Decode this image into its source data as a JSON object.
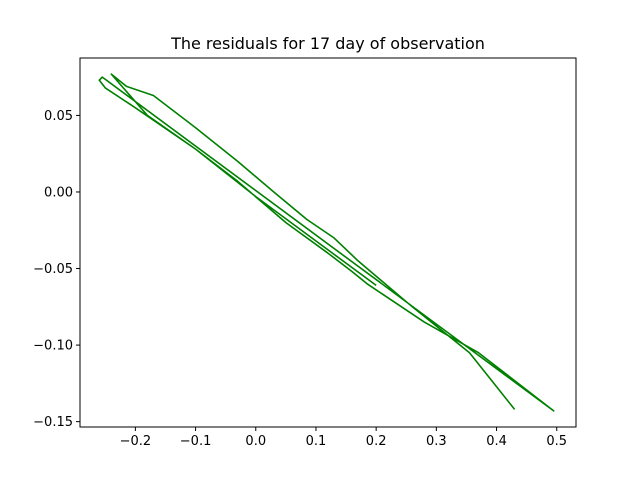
{
  "chart_data": {
    "type": "line",
    "title": "The residuals for 17 day of observation",
    "xlabel": "",
    "ylabel": "",
    "xlim": [
      -0.292,
      0.532
    ],
    "ylim": [
      -0.1535,
      0.0875
    ],
    "x_ticks": [
      -0.2,
      -0.1,
      0.0,
      0.1,
      0.2,
      0.3,
      0.4,
      0.5
    ],
    "x_tick_labels": [
      "−0.2",
      "−0.1",
      "0.0",
      "0.1",
      "0.2",
      "0.3",
      "0.4",
      "0.5"
    ],
    "y_ticks": [
      0.05,
      0.0,
      -0.05,
      -0.1,
      -0.15
    ],
    "y_tick_labels": [
      "0.05",
      "0.00",
      "−0.05",
      "−0.10",
      "−0.15"
    ],
    "grid": false,
    "series": [
      {
        "color": "#008000",
        "x": [
          0.43,
          0.355,
          0.26,
          0.17,
          0.13,
          0.085,
          0.03,
          -0.03,
          -0.1,
          -0.17,
          -0.215,
          -0.24,
          -0.22,
          -0.18,
          -0.1,
          -0.03,
          0.05,
          0.12,
          0.16,
          0.185,
          0.28,
          0.37,
          0.495,
          -0.255,
          -0.26,
          -0.25,
          -0.2,
          -0.1,
          0.0,
          0.1,
          0.2
        ],
        "y": [
          -0.142,
          -0.105,
          -0.075,
          -0.045,
          -0.03,
          -0.018,
          0.0,
          0.02,
          0.042,
          0.063,
          0.069,
          0.077,
          0.068,
          0.05,
          0.028,
          0.007,
          -0.02,
          -0.04,
          -0.052,
          -0.06,
          -0.085,
          -0.105,
          -0.143,
          0.075,
          0.073,
          0.068,
          0.055,
          0.028,
          -0.003,
          -0.032,
          -0.061
        ]
      }
    ]
  }
}
